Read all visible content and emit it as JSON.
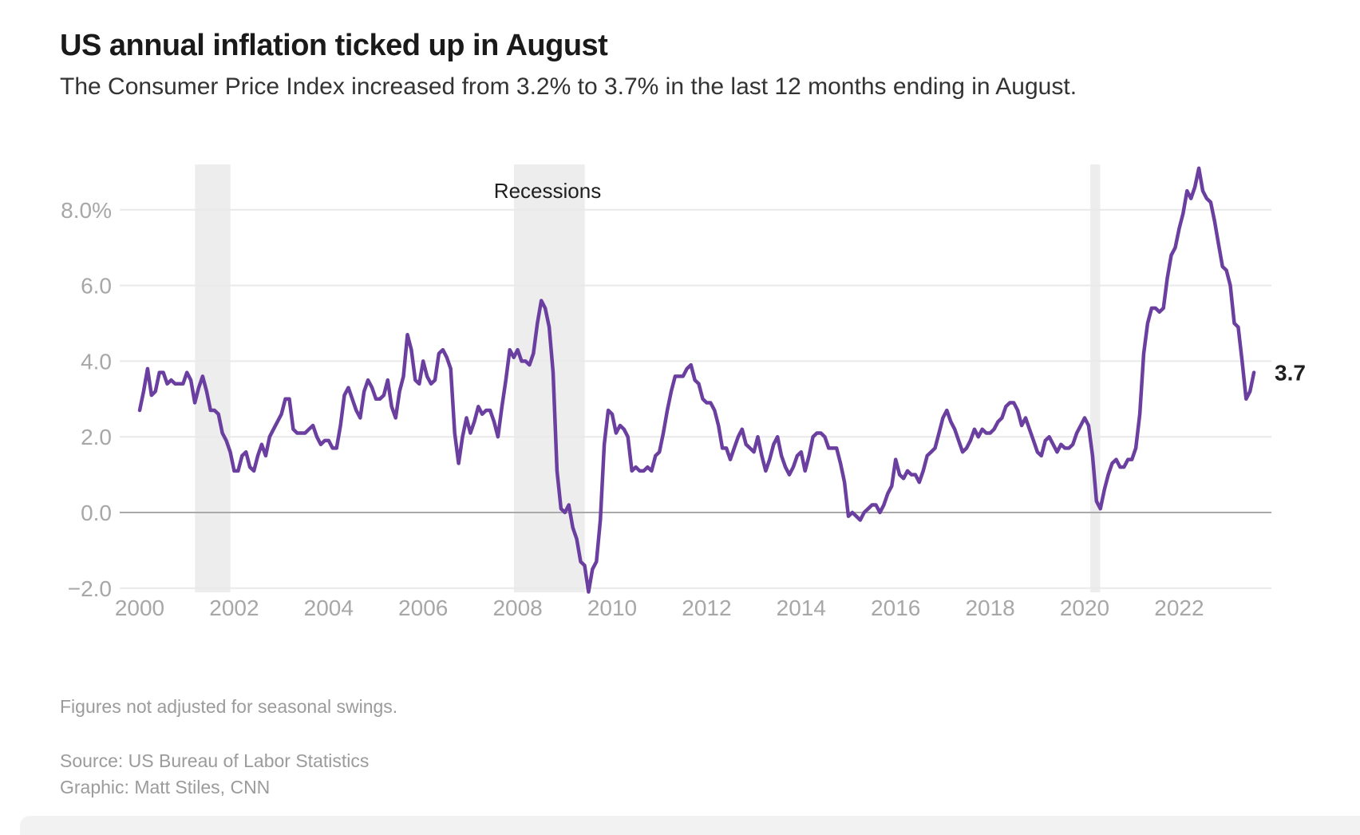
{
  "header": {
    "title": "US annual inflation ticked up in August",
    "subtitle": "The Consumer Price Index increased from 3.2% to 3.7% in the last 12 months ending in August."
  },
  "chart_data": {
    "type": "line",
    "title": "US annual inflation ticked up in August",
    "unit": "percent, 12-month change in Consumer Price Index",
    "frequency": "monthly",
    "x_start": {
      "year": 2000,
      "month": 1
    },
    "x_end": {
      "year": 2023,
      "month": 8
    },
    "series": [
      {
        "name": "CPI 12-month percent change",
        "values": [
          2.7,
          3.2,
          3.8,
          3.1,
          3.2,
          3.7,
          3.7,
          3.4,
          3.5,
          3.4,
          3.4,
          3.4,
          3.7,
          3.5,
          2.9,
          3.3,
          3.6,
          3.2,
          2.7,
          2.7,
          2.6,
          2.1,
          1.9,
          1.6,
          1.1,
          1.1,
          1.5,
          1.6,
          1.2,
          1.1,
          1.5,
          1.8,
          1.5,
          2.0,
          2.2,
          2.4,
          2.6,
          3.0,
          3.0,
          2.2,
          2.1,
          2.1,
          2.1,
          2.2,
          2.3,
          2.0,
          1.8,
          1.9,
          1.9,
          1.7,
          1.7,
          2.3,
          3.1,
          3.3,
          3.0,
          2.7,
          2.5,
          3.2,
          3.5,
          3.3,
          3.0,
          3.0,
          3.1,
          3.5,
          2.8,
          2.5,
          3.2,
          3.6,
          4.7,
          4.3,
          3.5,
          3.4,
          4.0,
          3.6,
          3.4,
          3.5,
          4.2,
          4.3,
          4.1,
          3.8,
          2.1,
          1.3,
          2.0,
          2.5,
          2.1,
          2.4,
          2.8,
          2.6,
          2.7,
          2.7,
          2.4,
          2.0,
          2.8,
          3.5,
          4.3,
          4.1,
          4.3,
          4.0,
          4.0,
          3.9,
          4.2,
          5.0,
          5.6,
          5.4,
          4.9,
          3.7,
          1.1,
          0.1,
          0.0,
          0.2,
          -0.4,
          -0.7,
          -1.3,
          -1.4,
          -2.1,
          -1.5,
          -1.3,
          -0.2,
          1.8,
          2.7,
          2.6,
          2.1,
          2.3,
          2.2,
          2.0,
          1.1,
          1.2,
          1.1,
          1.1,
          1.2,
          1.1,
          1.5,
          1.6,
          2.1,
          2.7,
          3.2,
          3.6,
          3.6,
          3.6,
          3.8,
          3.9,
          3.5,
          3.4,
          3.0,
          2.9,
          2.9,
          2.7,
          2.3,
          1.7,
          1.7,
          1.4,
          1.7,
          2.0,
          2.2,
          1.8,
          1.7,
          1.6,
          2.0,
          1.5,
          1.1,
          1.4,
          1.8,
          2.0,
          1.5,
          1.2,
          1.0,
          1.2,
          1.5,
          1.6,
          1.1,
          1.5,
          2.0,
          2.1,
          2.1,
          2.0,
          1.7,
          1.7,
          1.7,
          1.3,
          0.8,
          -0.1,
          0.0,
          -0.1,
          -0.2,
          0.0,
          0.1,
          0.2,
          0.2,
          0.0,
          0.2,
          0.5,
          0.7,
          1.4,
          1.0,
          0.9,
          1.1,
          1.0,
          1.0,
          0.8,
          1.1,
          1.5,
          1.6,
          1.7,
          2.1,
          2.5,
          2.7,
          2.4,
          2.2,
          1.9,
          1.6,
          1.7,
          1.9,
          2.2,
          2.0,
          2.2,
          2.1,
          2.1,
          2.2,
          2.4,
          2.5,
          2.8,
          2.9,
          2.9,
          2.7,
          2.3,
          2.5,
          2.2,
          1.9,
          1.6,
          1.5,
          1.9,
          2.0,
          1.8,
          1.6,
          1.8,
          1.7,
          1.7,
          1.8,
          2.1,
          2.3,
          2.5,
          2.3,
          1.5,
          0.3,
          0.1,
          0.6,
          1.0,
          1.3,
          1.4,
          1.2,
          1.2,
          1.4,
          1.4,
          1.7,
          2.6,
          4.2,
          5.0,
          5.4,
          5.4,
          5.3,
          5.4,
          6.2,
          6.8,
          7.0,
          7.5,
          7.9,
          8.5,
          8.3,
          8.6,
          9.1,
          8.5,
          8.3,
          8.2,
          7.7,
          7.1,
          6.5,
          6.4,
          6.0,
          5.0,
          4.9,
          4.0,
          3.0,
          3.2,
          3.7
        ]
      }
    ],
    "yticks": [
      {
        "value": 8,
        "label": "8.0%"
      },
      {
        "value": 6,
        "label": "6.0"
      },
      {
        "value": 4,
        "label": "4.0"
      },
      {
        "value": 2,
        "label": "2.0"
      },
      {
        "value": 0,
        "label": "0.0"
      },
      {
        "value": -2,
        "label": "−2.0"
      }
    ],
    "xticks": [
      {
        "year": 2000,
        "label": "2000"
      },
      {
        "year": 2002,
        "label": "2002"
      },
      {
        "year": 2004,
        "label": "2004"
      },
      {
        "year": 2006,
        "label": "2006"
      },
      {
        "year": 2008,
        "label": "2008"
      },
      {
        "year": 2010,
        "label": "2010"
      },
      {
        "year": 2012,
        "label": "2012"
      },
      {
        "year": 2014,
        "label": "2014"
      },
      {
        "year": 2016,
        "label": "2016"
      },
      {
        "year": 2018,
        "label": "2018"
      },
      {
        "year": 2020,
        "label": "2020"
      },
      {
        "year": 2022,
        "label": "2022"
      }
    ],
    "ylim": [
      -2.2,
      9.5
    ],
    "grid": true,
    "legend": "none",
    "recessions": [
      {
        "start_year": 2001.17,
        "end_year": 2001.92
      },
      {
        "start_year": 2007.92,
        "end_year": 2009.42
      },
      {
        "start_year": 2020.12,
        "end_year": 2020.33
      }
    ],
    "annotations": {
      "recessions_label": "Recessions",
      "end_label": "3.7"
    },
    "colors": {
      "line": "#6b3fa0",
      "recession_band": "#ededed",
      "gridline": "#e9e9e9",
      "zero_line": "#a9a9a9",
      "axis_text": "#a7a7a7",
      "annotation_text": "#1f1f1f"
    }
  },
  "footer": {
    "note": "Figures not adjusted for seasonal swings.",
    "source": "Source: US Bureau of Labor Statistics",
    "credit": "Graphic: Matt Stiles, CNN"
  }
}
